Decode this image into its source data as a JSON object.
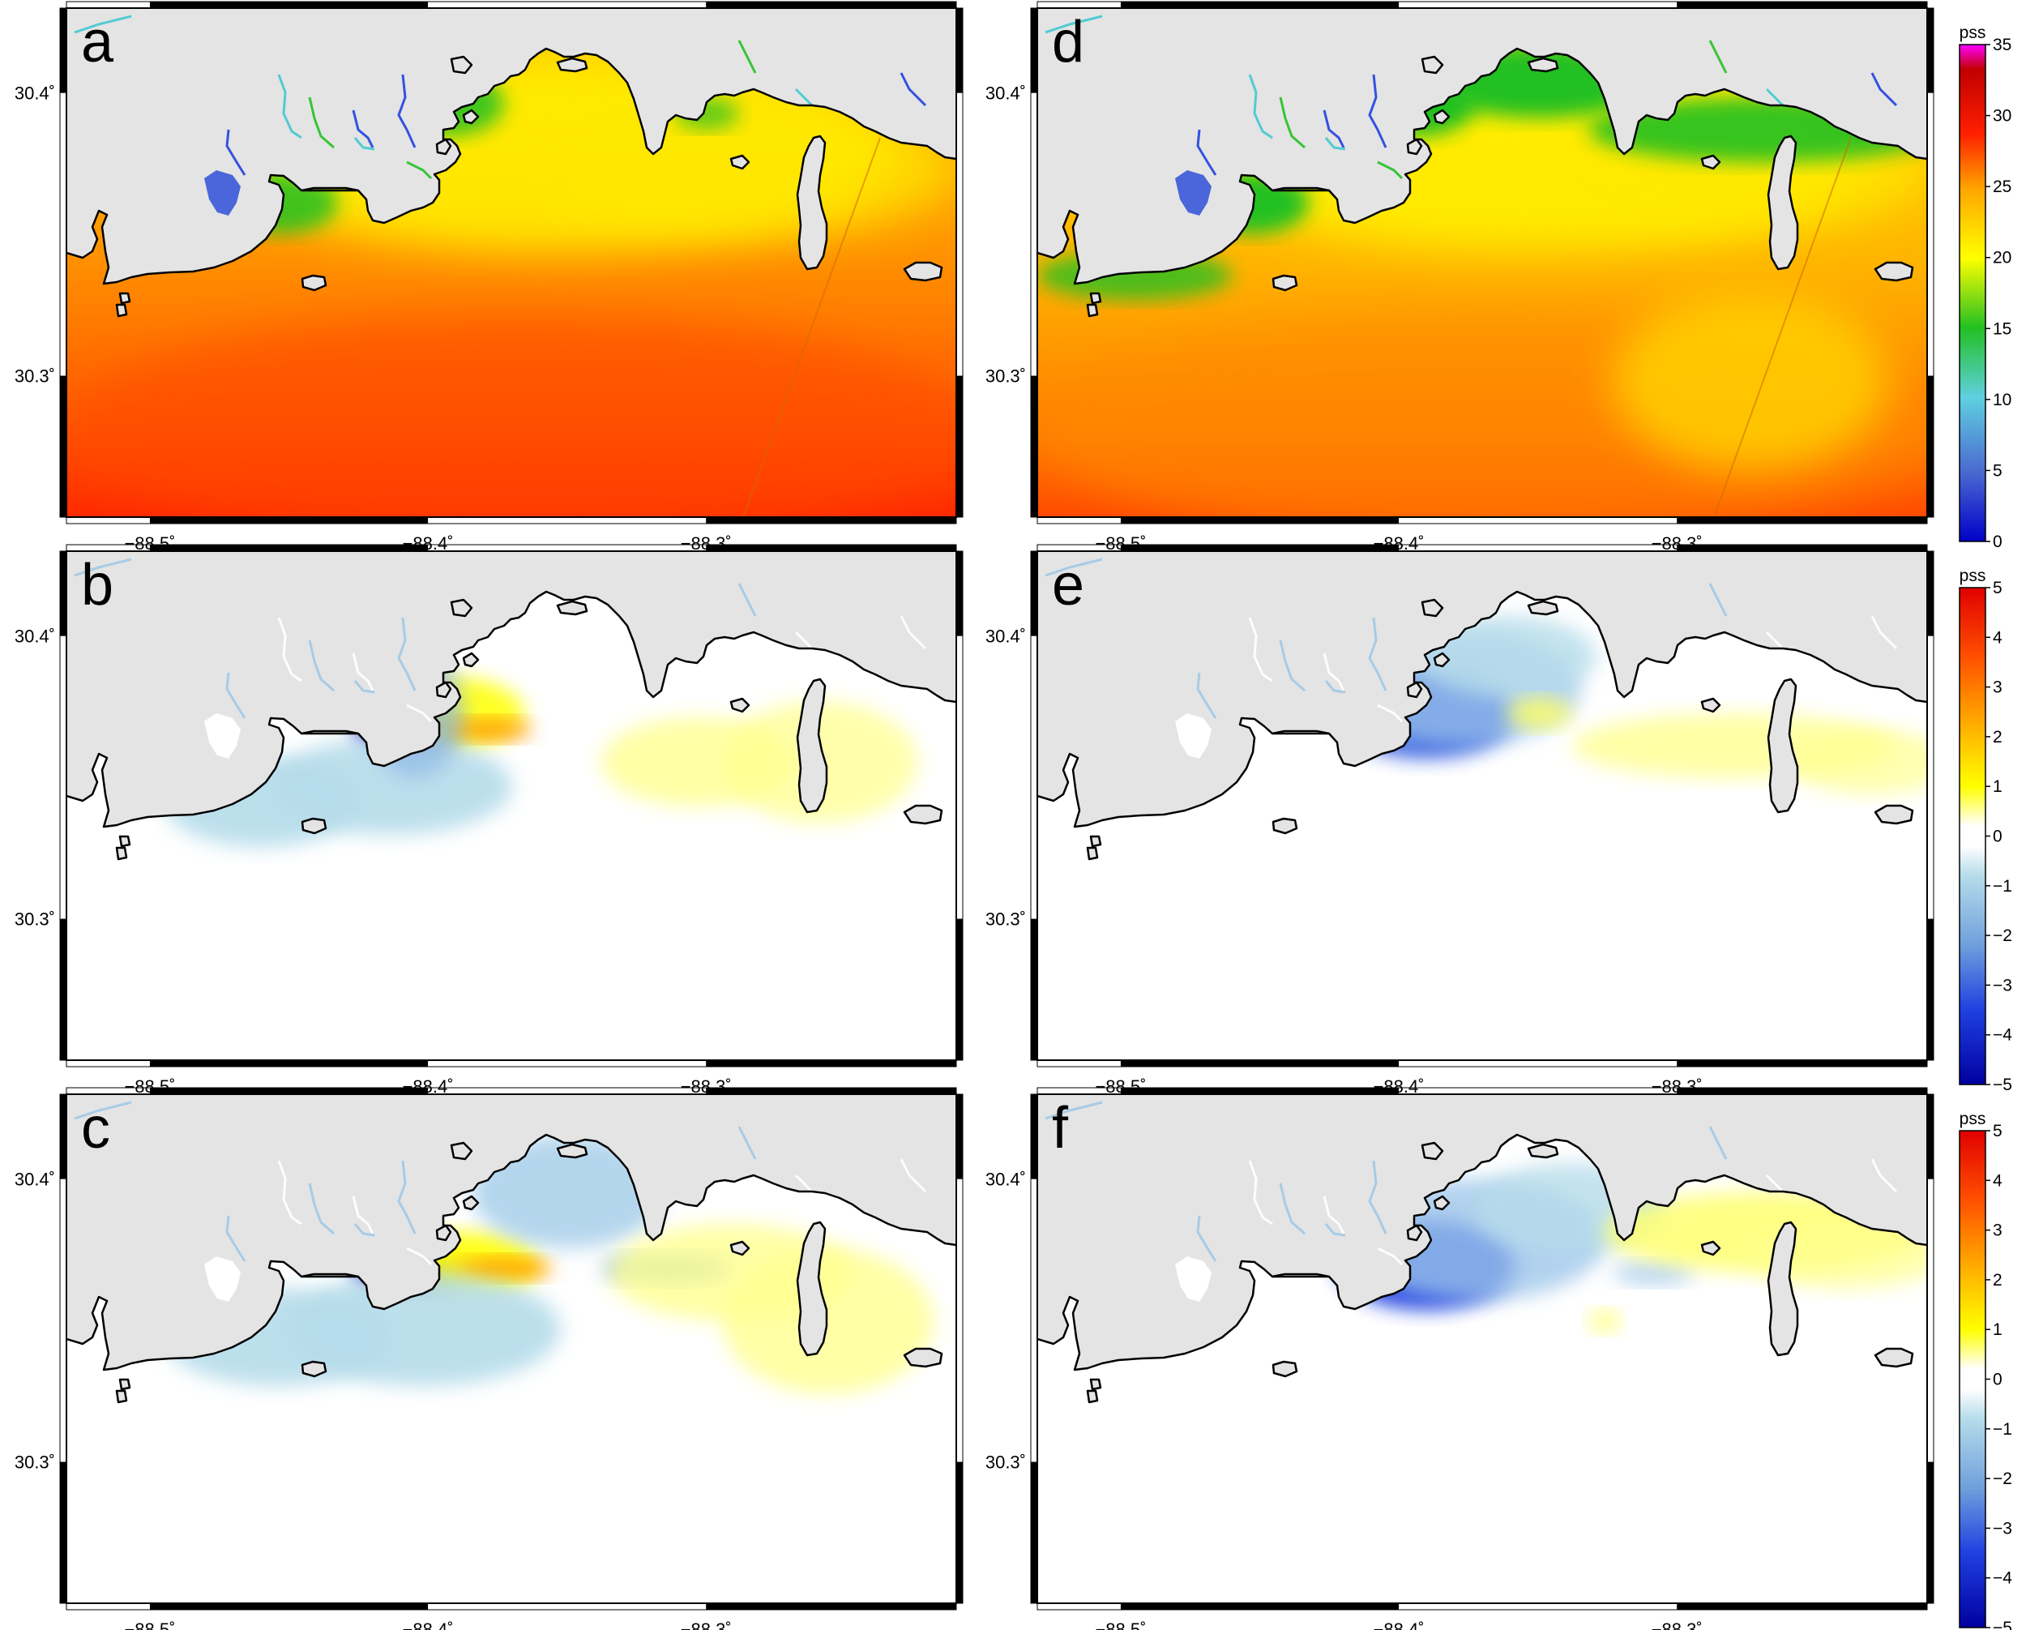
{
  "map_extent": {
    "lon": [
      -88.53,
      -88.21
    ],
    "lat": [
      30.25,
      30.43
    ]
  },
  "lon_ticks": [
    {
      "value": -88.5,
      "label": "−88.5˚"
    },
    {
      "value": -88.4,
      "label": "−88.4˚"
    },
    {
      "value": -88.3,
      "label": "−88.3˚"
    }
  ],
  "lat_ticks": [
    {
      "value": 30.4,
      "label": "30.4˚"
    },
    {
      "value": 30.3,
      "label": "30.3˚"
    }
  ],
  "panels": [
    {
      "id": "a",
      "letter": "a",
      "field": "salinity",
      "variant": 0
    },
    {
      "id": "b",
      "letter": "b",
      "field": "difference",
      "variant": 0
    },
    {
      "id": "c",
      "letter": "c",
      "field": "difference",
      "variant": 1
    },
    {
      "id": "d",
      "letter": "d",
      "field": "salinity",
      "variant": 1
    },
    {
      "id": "e",
      "letter": "e",
      "field": "difference",
      "variant": 2
    },
    {
      "id": "f",
      "letter": "f",
      "field": "difference",
      "variant": 3
    }
  ],
  "colorbars": [
    {
      "id": "salinity",
      "unit": "pss",
      "range": [
        0,
        35
      ],
      "tick_labels": [
        "0",
        "5",
        "10",
        "15",
        "20",
        "25",
        "30",
        "35"
      ],
      "stops": [
        "#0000c8",
        "#4a6ad0",
        "#5fd0e0",
        "#22c022",
        "#ffff00",
        "#ffa500",
        "#ff2000",
        "#c00000",
        "#ff00ff"
      ]
    },
    {
      "id": "difference",
      "unit": "pss",
      "range": [
        -5,
        5
      ],
      "tick_labels": [
        "−5",
        "−4",
        "−3",
        "−2",
        "−1",
        "0",
        "1",
        "2",
        "3",
        "4",
        "5"
      ],
      "stops": [
        "#0000a0",
        "#2040e0",
        "#6f9fdc",
        "#b5dcea",
        "#ffffff",
        "#ffffff",
        "#ffff00",
        "#ffb000",
        "#ff5000",
        "#e00000"
      ]
    }
  ],
  "colors": {
    "land": "#e4e4e4",
    "water": "#ffffff",
    "coast": "#000000"
  }
}
